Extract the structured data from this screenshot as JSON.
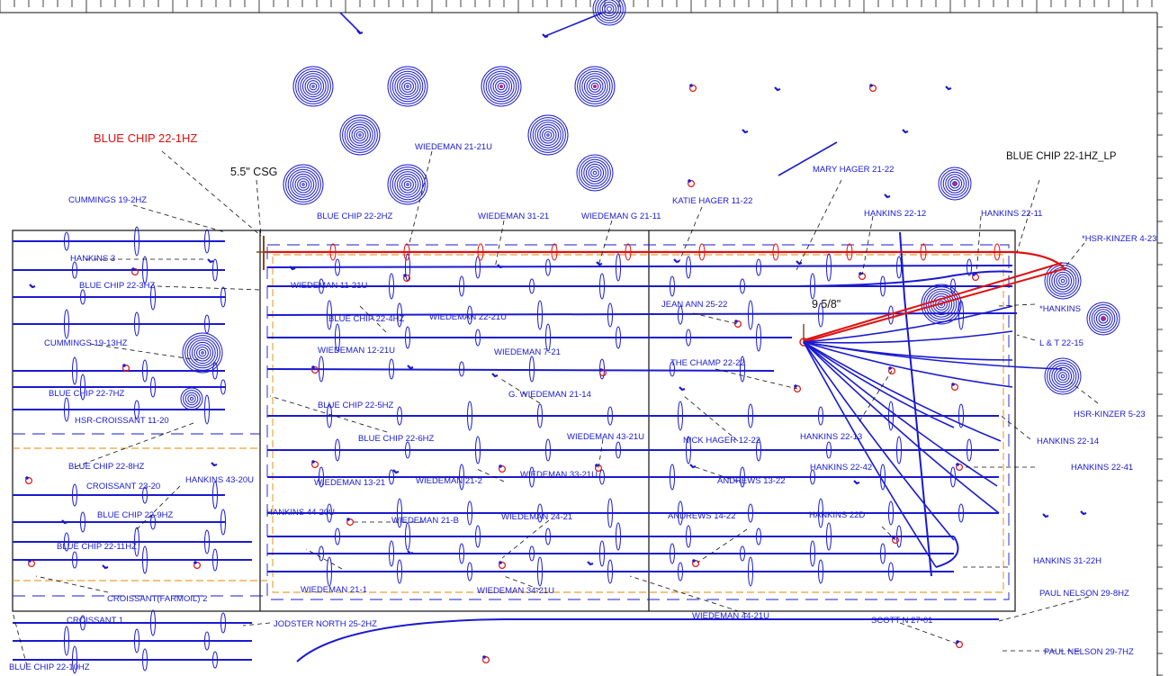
{
  "header": {
    "subject_well": "BLUE CHIP 22-1HZ",
    "subject_lp": "BLUE CHIP 22-1HZ_LP",
    "casing_5_5": "5.5\" CSG",
    "casing_9_5_8": "9 5/8\""
  },
  "colors": {
    "blue": "#1a1ad0",
    "red": "#e01010",
    "orange": "#e08a00",
    "black": "#111111"
  },
  "labels": [
    {
      "id": "wiedeman-21-21u",
      "text": "WIEDEMAN 21-21U"
    },
    {
      "id": "cummings-19-2hz",
      "text": "CUMMINGS 19-2HZ"
    },
    {
      "id": "blue-chip-22-2hz",
      "text": "BLUE CHIP 22-2HZ"
    },
    {
      "id": "wiedeman-31-21",
      "text": "WIEDEMAN 31-21"
    },
    {
      "id": "wiedeman-g-21-11",
      "text": "WIEDEMAN G 21-11"
    },
    {
      "id": "katie-hager-11-22",
      "text": "KATIE HAGER 11-22"
    },
    {
      "id": "mary-hager-21-22",
      "text": "MARY HAGER 21-22"
    },
    {
      "id": "hankins-22-12",
      "text": "HANKINS 22-12"
    },
    {
      "id": "hankins-22-11",
      "text": "HANKINS 22-11"
    },
    {
      "id": "hsr-kinzer-4-23",
      "text": "*HSR-KINZER 4-23"
    },
    {
      "id": "hankins-3",
      "text": "HANKINS 3"
    },
    {
      "id": "blue-chip-22-3hz",
      "text": "BLUE CHIP 22-3HZ"
    },
    {
      "id": "wiedeman-11-21u",
      "text": "WIEDEMAN 11-21U"
    },
    {
      "id": "jean-ann-25-22",
      "text": "JEAN ANN 25-22"
    },
    {
      "id": "hankins-star",
      "text": "*HANKINS"
    },
    {
      "id": "blue-chip-22-4hz",
      "text": "BLUE CHIP 22-4HZ"
    },
    {
      "id": "wiedeman-22-21u",
      "text": "WIEDEMAN 22-21U"
    },
    {
      "id": "cummings-19-13hz",
      "text": "CUMMINGS 19-13HZ"
    },
    {
      "id": "l-t-22-15",
      "text": "L & T 22-15"
    },
    {
      "id": "wiedeman-12-21u",
      "text": "WIEDEMAN 12-21U"
    },
    {
      "id": "wiedeman-7-21",
      "text": "WIEDEMAN 7-21"
    },
    {
      "id": "the-champ-22-22",
      "text": "THE CHAMP 22-22"
    },
    {
      "id": "blue-chip-22-7hz",
      "text": "BLUE CHIP 22-7HZ"
    },
    {
      "id": "g-wiedeman-21-14",
      "text": "G. WIEDEMAN 21-14"
    },
    {
      "id": "blue-chip-22-5hz",
      "text": "BLUE CHIP 22-5HZ"
    },
    {
      "id": "hsr-kinzer-5-23",
      "text": "HSR-KINZER 5-23"
    },
    {
      "id": "hsr-croissant-11-20",
      "text": "HSR-CROISSANT  11-20"
    },
    {
      "id": "blue-chip-22-6hz",
      "text": "BLUE CHIP 22-6HZ"
    },
    {
      "id": "wiedeman-43-21u",
      "text": "WIEDEMAN 43-21U"
    },
    {
      "id": "nick-hager-12-22",
      "text": "NICK HAGER 12-22"
    },
    {
      "id": "hankins-22-13",
      "text": "HANKINS  22-13"
    },
    {
      "id": "hankins-22-14",
      "text": "HANKINS 22-14"
    },
    {
      "id": "blue-chip-22-8hz",
      "text": "BLUE CHIP 22-8HZ"
    },
    {
      "id": "hankins-22-42",
      "text": "HANKINS 22-42"
    },
    {
      "id": "hankins-22-41",
      "text": "HANKINS 22-41"
    },
    {
      "id": "hankins-43-20u",
      "text": "HANKINS 43-20U"
    },
    {
      "id": "wiedeman-13-21",
      "text": "WIEDEMAN 13-21"
    },
    {
      "id": "wiedeman-21-2",
      "text": "WIEDEMAN 21-2"
    },
    {
      "id": "wiedeman-33-21u",
      "text": "WIEDEMAN 33-21U"
    },
    {
      "id": "croissant-23-20",
      "text": "CROISSANT 23-20"
    },
    {
      "id": "andrews-13-22",
      "text": "ANDREWS 13-22"
    },
    {
      "id": "blue-chip-22-9hz",
      "text": "BLUE CHIP 22-9HZ"
    },
    {
      "id": "hankins-44-20u",
      "text": "HANKINS 44-20U"
    },
    {
      "id": "wiedeman-21-b",
      "text": "WIEDEMAN 21-B"
    },
    {
      "id": "wiedeman-24-21",
      "text": "WIEDEMAN 24-21"
    },
    {
      "id": "andrews-14-22",
      "text": "ANDREWS 14-22"
    },
    {
      "id": "hankins-22d",
      "text": "HANKINS 22D"
    },
    {
      "id": "blue-chip-22-11hz",
      "text": "BLUE CHIP 22-11HZ"
    },
    {
      "id": "hankins-31-22h",
      "text": "HANKINS 31-22H"
    },
    {
      "id": "wiedeman-21-1",
      "text": "WIEDEMAN 21-1"
    },
    {
      "id": "wiedeman-34-21u",
      "text": "WIEDEMAN 34-21U"
    },
    {
      "id": "croissant-farmoil-2",
      "text": "CROISSANT(FARMOIL) 2"
    },
    {
      "id": "paul-nelson-29-8hz",
      "text": "PAUL NELSON 29-8HZ"
    },
    {
      "id": "wiedeman-44-21u",
      "text": "WIEDEMAN 44-21U"
    },
    {
      "id": "croissant-1",
      "text": "CROISSANT 1"
    },
    {
      "id": "jodster-north-25-2hz",
      "text": "JODSTER NORTH 25-2HZ"
    },
    {
      "id": "scott-n-27-01",
      "text": "SCOTT N 27-01"
    },
    {
      "id": "paul-nelson-29-7hz",
      "text": "PAUL NELSON 29-7HZ"
    },
    {
      "id": "blue-chip-22-10hz",
      "text": "BLUE CHIP 22-10HZ"
    }
  ]
}
